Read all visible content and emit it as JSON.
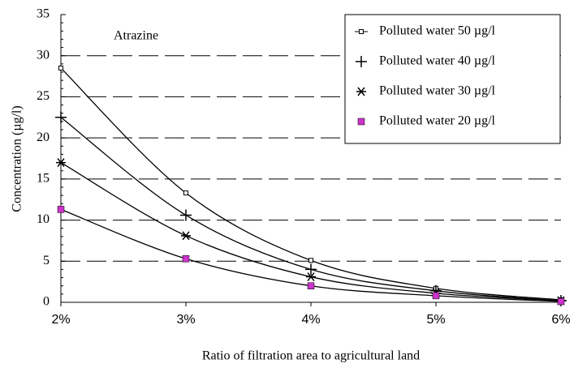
{
  "chart_data": {
    "type": "line",
    "annotation": "Atrazine",
    "x_label": "Ratio of filtration area to agricultural land",
    "y_label": "Concentration (µg/l)",
    "categories": [
      "2%",
      "3%",
      "4%",
      "5%",
      "6%"
    ],
    "ylim": [
      0,
      35
    ],
    "yticks": [
      0,
      5,
      10,
      15,
      20,
      25,
      30,
      35
    ],
    "grid": true,
    "legend": "top-right",
    "series": [
      {
        "name": "Polluted water 50 µg/l",
        "color": "#000000",
        "marker": "square-open",
        "marker_color": "#000000",
        "values": [
          28.5,
          13.3,
          5.1,
          1.7,
          0.3
        ]
      },
      {
        "name": "Polluted water 40 µg/l",
        "color": "#000000",
        "marker": "plus",
        "marker_color": "#000000",
        "values": [
          22.5,
          10.6,
          4.0,
          1.4,
          0.2
        ]
      },
      {
        "name": "Polluted water 30 µg/l",
        "color": "#000000",
        "marker": "asterisk",
        "marker_color": "#000000",
        "values": [
          17,
          8.1,
          3.1,
          1.1,
          0.2
        ]
      },
      {
        "name": "Polluted water 20 µg/l",
        "color": "#000000",
        "marker": "square",
        "marker_color": "#cc33cc",
        "values": [
          11.3,
          5.3,
          2.0,
          0.8,
          0.1
        ]
      }
    ]
  }
}
